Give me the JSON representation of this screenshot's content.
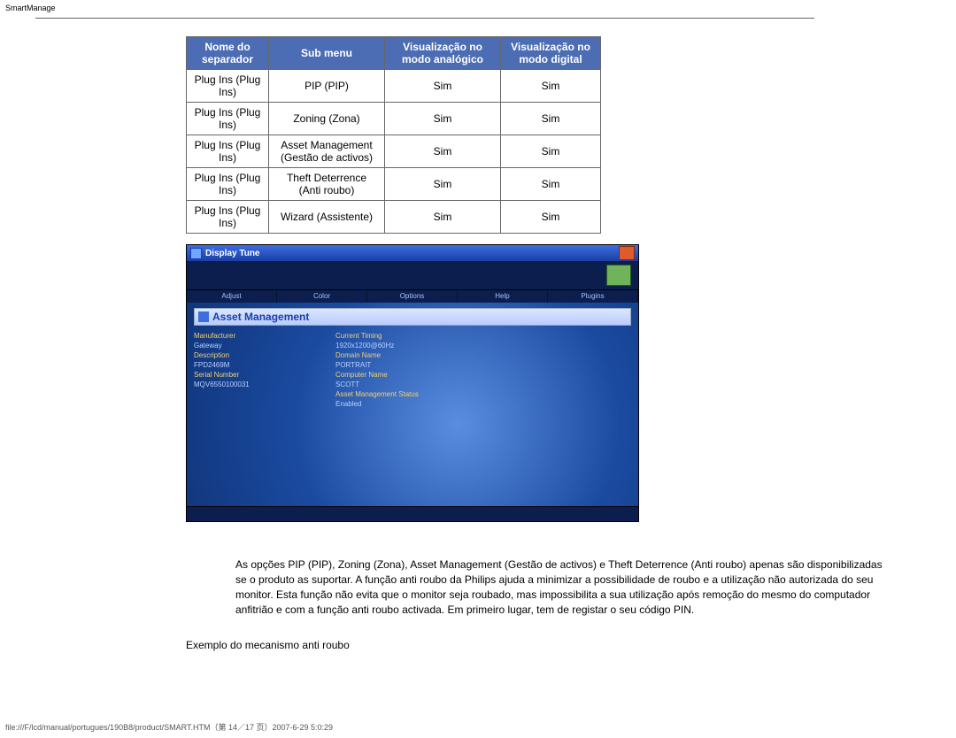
{
  "page": {
    "title": "SmartManage",
    "footer": "file:///F/lcd/manual/portugues/190B8/product/SMART.HTM（第 14／17 页）2007-6-29 5:0:29"
  },
  "table": {
    "headers": [
      "Nome do separador",
      "Sub menu",
      "Visualização no modo analógico",
      "Visualização no modo digital"
    ],
    "rows": [
      [
        "Plug Ins (Plug Ins)",
        "PIP (PIP)",
        "Sim",
        "Sim"
      ],
      [
        "Plug Ins (Plug Ins)",
        "Zoning (Zona)",
        "Sim",
        "Sim"
      ],
      [
        "Plug Ins (Plug Ins)",
        "Asset Management (Gestão de activos)",
        "Sim",
        "Sim"
      ],
      [
        "Plug Ins (Plug Ins)",
        "Theft Deterrence (Anti roubo)",
        "Sim",
        "Sim"
      ],
      [
        "Plug Ins (Plug Ins)",
        "Wizard (Assistente)",
        "Sim",
        "Sim"
      ]
    ]
  },
  "window": {
    "title": "Display Tune",
    "tabs": [
      "Adjust",
      "Color",
      "Options",
      "Help",
      "Plugins"
    ],
    "panel_title": "Asset Management",
    "left_fields": [
      {
        "label": "Manufacturer",
        "value": "Gateway"
      },
      {
        "label": "Description",
        "value": "FPD2469M"
      },
      {
        "label": "Serial Number",
        "value": "MQV6550100031"
      }
    ],
    "right_fields": [
      {
        "label": "Current Timing",
        "value": "1920x1200@60Hz"
      },
      {
        "label": "Domain Name",
        "value": "PORTRAIT"
      },
      {
        "label": "Computer Name",
        "value": "SCOTT"
      },
      {
        "label": "Asset Management Status",
        "value": "Enabled"
      }
    ]
  },
  "body": {
    "paragraph": "As opções PIP (PIP), Zoning (Zona), Asset Management (Gestão de activos) e Theft Deterrence (Anti roubo) apenas são disponibilizadas se o produto as suportar. A função anti roubo da Philips ajuda a minimizar a possibilidade de roubo e a utilização não autorizada do seu monitor. Esta função não evita que o monitor seja roubado, mas impossibilita a sua utilização após remoção do mesmo do computador anfitrião e com a função anti roubo activada. Em primeiro lugar, tem de registar o seu código PIN.",
    "caption": "Exemplo do mecanismo anti roubo"
  }
}
